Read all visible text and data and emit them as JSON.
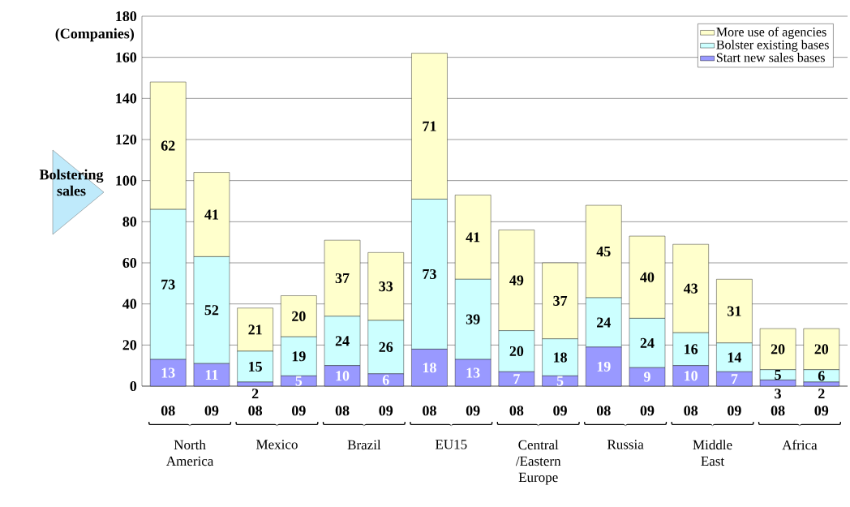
{
  "chart_data": {
    "type": "bar",
    "stacked": true,
    "ylabel": "(Companies)",
    "categories": [
      "08",
      "09",
      "08",
      "09",
      "08",
      "09",
      "08",
      "09",
      "08",
      "09",
      "08",
      "09",
      "08",
      "09",
      "08",
      "09"
    ],
    "series": [
      {
        "name": "Start new sales bases",
        "color": "#9999ff",
        "values": [
          13,
          11,
          2,
          5,
          10,
          6,
          18,
          13,
          7,
          5,
          19,
          9,
          10,
          7,
          3,
          2
        ]
      },
      {
        "name": "Bolster existing bases",
        "color": "#ccffff",
        "values": [
          73,
          52,
          15,
          19,
          24,
          26,
          73,
          39,
          20,
          18,
          24,
          24,
          16,
          14,
          5,
          6
        ]
      },
      {
        "name": "More use of agencies",
        "color": "#ffffcc",
        "values": [
          62,
          41,
          21,
          20,
          37,
          33,
          71,
          41,
          49,
          37,
          45,
          40,
          43,
          31,
          20,
          20
        ]
      }
    ],
    "ylim": [
      0,
      180
    ],
    "yticks": [
      0,
      20,
      40,
      60,
      80,
      100,
      120,
      140,
      160,
      180
    ],
    "grid": "y",
    "legend": "top right",
    "data_labels": true,
    "annotations": [
      "Bolstering sales",
      "North America",
      "Mexico",
      "Brazil",
      "EU15",
      "Central /Eastern Europe",
      "Russia",
      "Middle East",
      "Africa"
    ]
  }
}
